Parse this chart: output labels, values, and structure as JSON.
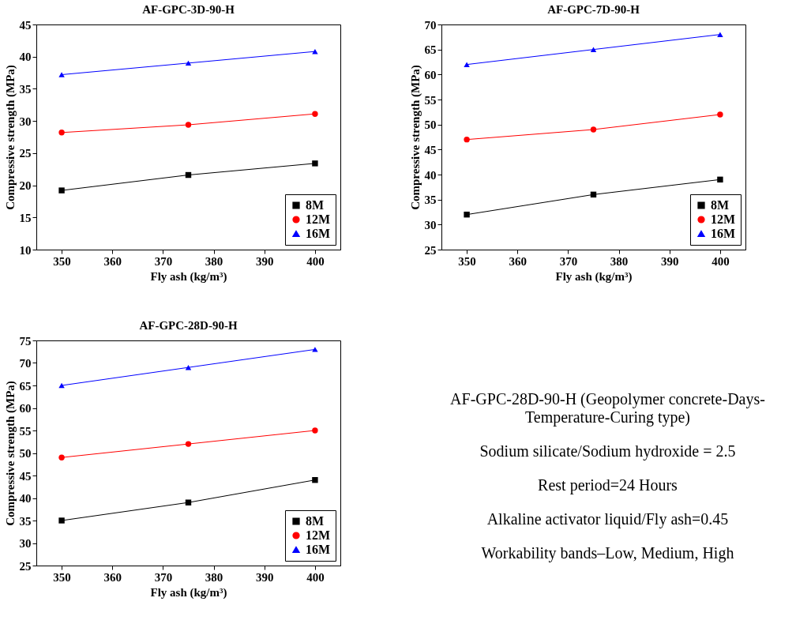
{
  "chart_data": [
    {
      "type": "line",
      "title": "AF-GPC-3D-90-H",
      "xlabel": "Fly ash (kg/m³)",
      "ylabel": "Compressive strength (MPa)",
      "x": [
        350,
        375,
        400
      ],
      "xlim": [
        345,
        405
      ],
      "xticks": [
        350,
        360,
        370,
        380,
        390,
        400
      ],
      "ylim": [
        10,
        45
      ],
      "yticks": [
        10,
        15,
        20,
        25,
        30,
        35,
        40,
        45
      ],
      "grid": false,
      "legend": "bottom right",
      "series": [
        {
          "name": "8M",
          "color": "#000000",
          "marker": "square",
          "values": [
            19.2,
            21.6,
            23.4
          ]
        },
        {
          "name": "12M",
          "color": "#ff0000",
          "marker": "circle",
          "values": [
            28.2,
            29.4,
            31.1
          ]
        },
        {
          "name": "16M",
          "color": "#0000ff",
          "marker": "triangle",
          "values": [
            37.2,
            39.0,
            40.8
          ]
        }
      ]
    },
    {
      "type": "line",
      "title": "AF-GPC-7D-90-H",
      "xlabel": "Fly ash (kg/m³)",
      "ylabel": "Compressive strength (MPa)",
      "x": [
        350,
        375,
        400
      ],
      "xlim": [
        345,
        405
      ],
      "xticks": [
        350,
        360,
        370,
        380,
        390,
        400
      ],
      "ylim": [
        25,
        70
      ],
      "yticks": [
        25,
        30,
        35,
        40,
        45,
        50,
        55,
        60,
        65,
        70
      ],
      "grid": false,
      "legend": "bottom right",
      "series": [
        {
          "name": "8M",
          "color": "#000000",
          "marker": "square",
          "values": [
            32,
            36,
            39
          ]
        },
        {
          "name": "12M",
          "color": "#ff0000",
          "marker": "circle",
          "values": [
            47,
            49,
            52
          ]
        },
        {
          "name": "16M",
          "color": "#0000ff",
          "marker": "triangle",
          "values": [
            62,
            65,
            68
          ]
        }
      ]
    },
    {
      "type": "line",
      "title": "AF-GPC-28D-90-H",
      "xlabel": "Fly ash (kg/m³)",
      "ylabel": "Compressive strength (MPa)",
      "x": [
        350,
        375,
        400
      ],
      "xlim": [
        345,
        405
      ],
      "xticks": [
        350,
        360,
        370,
        380,
        390,
        400
      ],
      "ylim": [
        25,
        75
      ],
      "yticks": [
        25,
        30,
        35,
        40,
        45,
        50,
        55,
        60,
        65,
        70,
        75
      ],
      "grid": false,
      "legend": "bottom right",
      "series": [
        {
          "name": "8M",
          "color": "#000000",
          "marker": "square",
          "values": [
            35,
            39,
            44
          ]
        },
        {
          "name": "12M",
          "color": "#ff0000",
          "marker": "circle",
          "values": [
            49,
            52,
            55
          ]
        },
        {
          "name": "16M",
          "color": "#0000ff",
          "marker": "triangle",
          "values": [
            65,
            69,
            73
          ]
        }
      ]
    },
    {
      "type": "other",
      "annotations": [
        "AF-GPC-28D-90-H (Geopolymer concrete-Days-Temperature-Curing type)",
        "Sodium silicate/Sodium hydroxide = 2.5",
        "Rest period=24 Hours",
        "Alkaline activator liquid/Fly ash=0.45",
        "Workability bands–Low, Medium, High"
      ]
    }
  ]
}
